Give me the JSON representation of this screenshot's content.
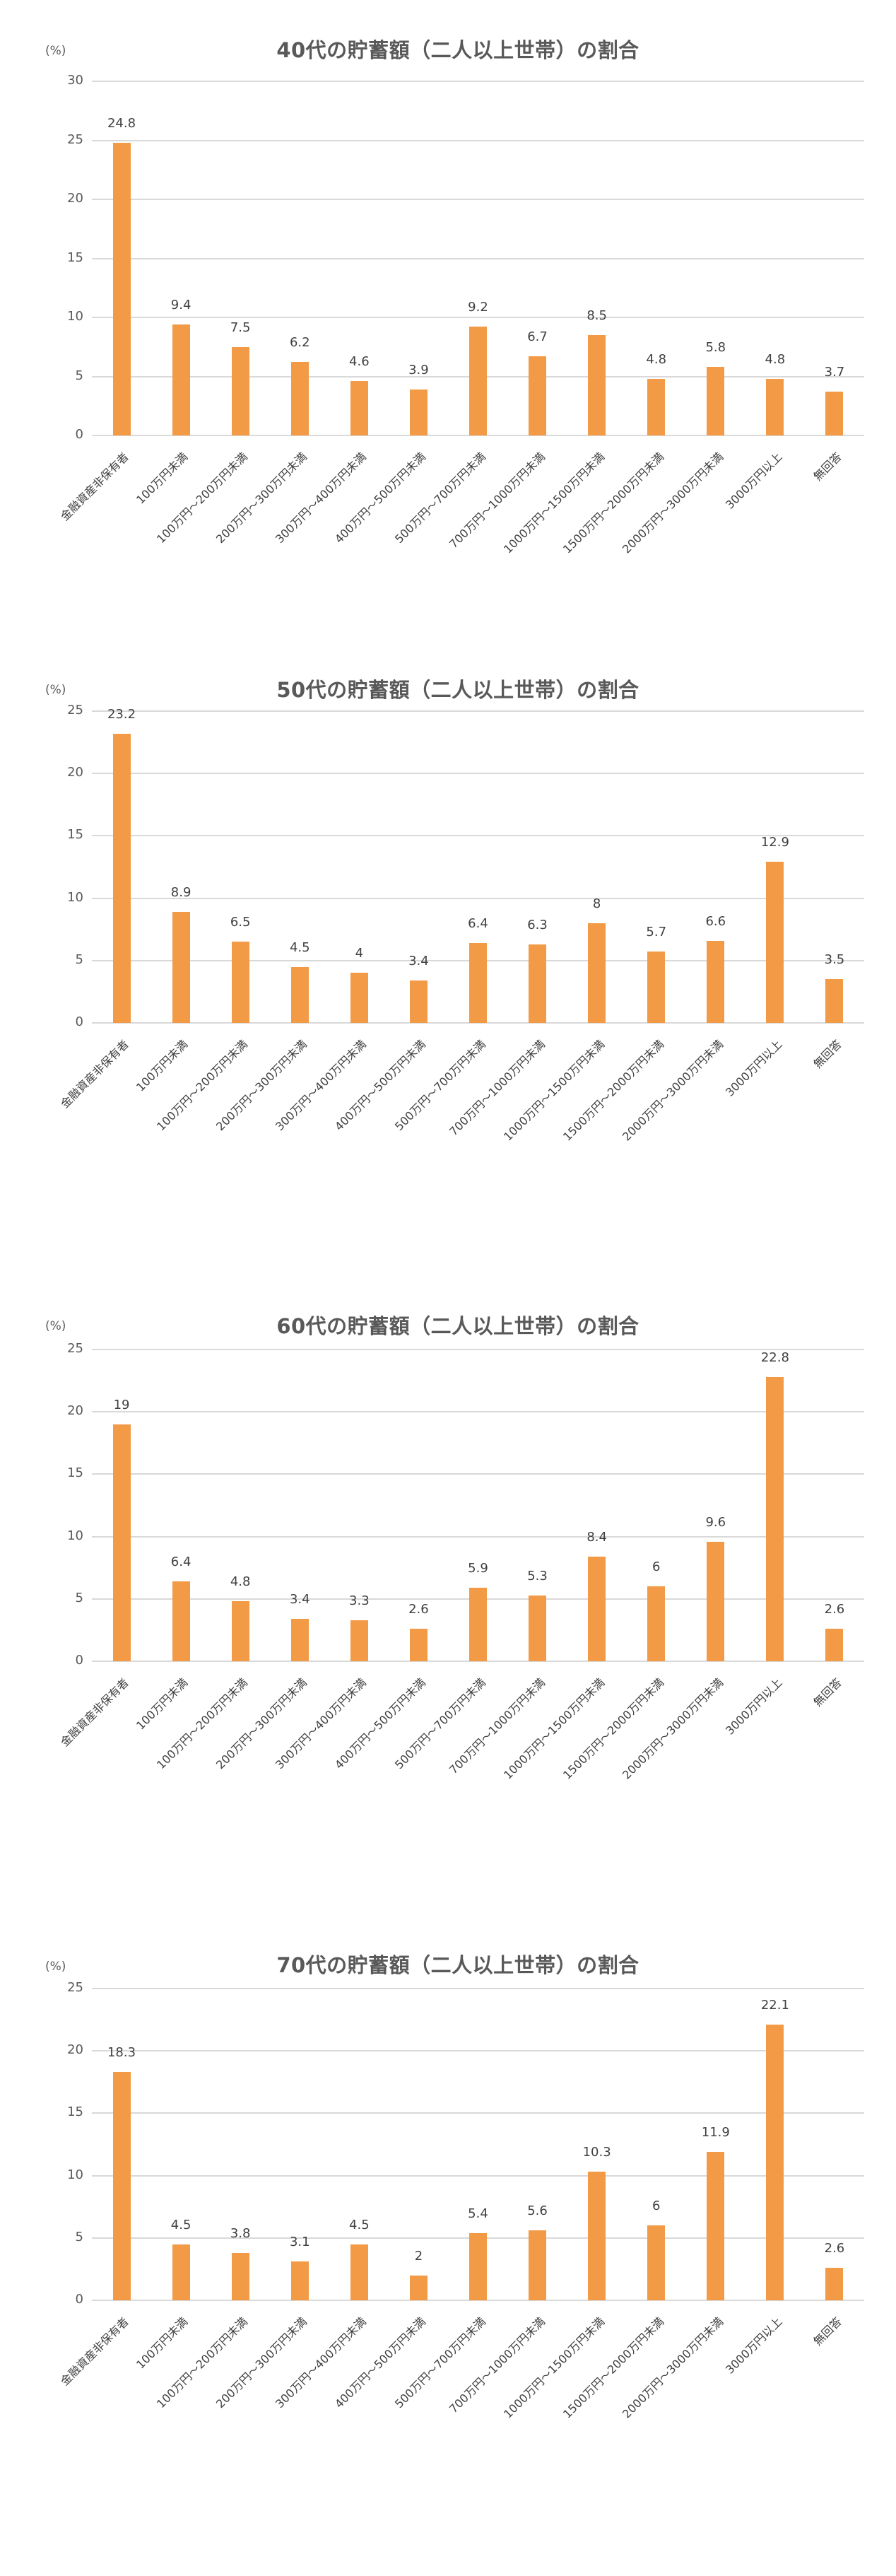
{
  "chart_data": [
    {
      "type": "bar",
      "title": "40代の貯蓄額（二人以上世帯）の割合",
      "ylabel": "(%)",
      "xlabel": "",
      "ylim": [
        0,
        30
      ],
      "yticks": [
        0,
        5,
        10,
        15,
        20,
        25,
        30
      ],
      "grid": true,
      "legend": "none",
      "categories": [
        "金融資産非保有者",
        "100万円未満",
        "100万円～200万円未満",
        "200万円～300万円未満",
        "300万円～400万円未満",
        "400万円～500万円未満",
        "500万円～700万円未満",
        "700万円～1000万円未満",
        "1000万円～1500万円未満",
        "1500万円～2000万円未満",
        "2000万円～3000万円未満",
        "3000万円以上",
        "無回答"
      ],
      "values": [
        24.8,
        9.4,
        7.5,
        6.2,
        4.6,
        3.9,
        9.2,
        6.7,
        8.5,
        4.8,
        5.8,
        4.8,
        3.7
      ],
      "bar_color": "#f39a46"
    },
    {
      "type": "bar",
      "title": "50代の貯蓄額（二人以上世帯）の割合",
      "ylabel": "(%)",
      "xlabel": "",
      "ylim": [
        0,
        25
      ],
      "yticks": [
        0,
        5,
        10,
        15,
        20,
        25
      ],
      "grid": true,
      "legend": "none",
      "categories": [
        "金融資産非保有者",
        "100万円未満",
        "100万円～200万円未満",
        "200万円～300万円未満",
        "300万円～400万円未満",
        "400万円～500万円未満",
        "500万円～700万円未満",
        "700万円～1000万円未満",
        "1000万円～1500万円未満",
        "1500万円～2000万円未満",
        "2000万円～3000万円未満",
        "3000万円以上",
        "無回答"
      ],
      "values": [
        23.2,
        8.9,
        6.5,
        4.5,
        4,
        3.4,
        6.4,
        6.3,
        8,
        5.7,
        6.6,
        12.9,
        3.5
      ],
      "bar_color": "#f39a46"
    },
    {
      "type": "bar",
      "title": "60代の貯蓄額（二人以上世帯）の割合",
      "ylabel": "(%)",
      "xlabel": "",
      "ylim": [
        0,
        25
      ],
      "yticks": [
        0,
        5,
        10,
        15,
        20,
        25
      ],
      "grid": true,
      "legend": "none",
      "categories": [
        "金融資産非保有者",
        "100万円未満",
        "100万円～200万円未満",
        "200万円～300万円未満",
        "300万円～400万円未満",
        "400万円～500万円未満",
        "500万円～700万円未満",
        "700万円～1000万円未満",
        "1000万円～1500万円未満",
        "1500万円～2000万円未満",
        "2000万円～3000万円未満",
        "3000万円以上",
        "無回答"
      ],
      "values": [
        19,
        6.4,
        4.8,
        3.4,
        3.3,
        2.6,
        5.9,
        5.3,
        8.4,
        6,
        9.6,
        22.8,
        2.6
      ],
      "bar_color": "#f39a46"
    },
    {
      "type": "bar",
      "title": "70代の貯蓄額（二人以上世帯）の割合",
      "ylabel": "(%)",
      "xlabel": "",
      "ylim": [
        0,
        25
      ],
      "yticks": [
        0,
        5,
        10,
        15,
        20,
        25
      ],
      "grid": true,
      "legend": "none",
      "categories": [
        "金融資産非保有者",
        "100万円未満",
        "100万円～200万円未満",
        "200万円～300万円未満",
        "300万円～400万円未満",
        "400万円～500万円未満",
        "500万円～700万円未満",
        "700万円～1000万円未満",
        "1000万円～1500万円未満",
        "1500万円～2000万円未満",
        "2000万円～3000万円未満",
        "3000万円以上",
        "無回答"
      ],
      "values": [
        18.3,
        4.5,
        3.8,
        3.1,
        4.5,
        2,
        5.4,
        5.6,
        10.3,
        6,
        11.9,
        22.1,
        2.6
      ],
      "bar_color": "#f39a46"
    }
  ]
}
